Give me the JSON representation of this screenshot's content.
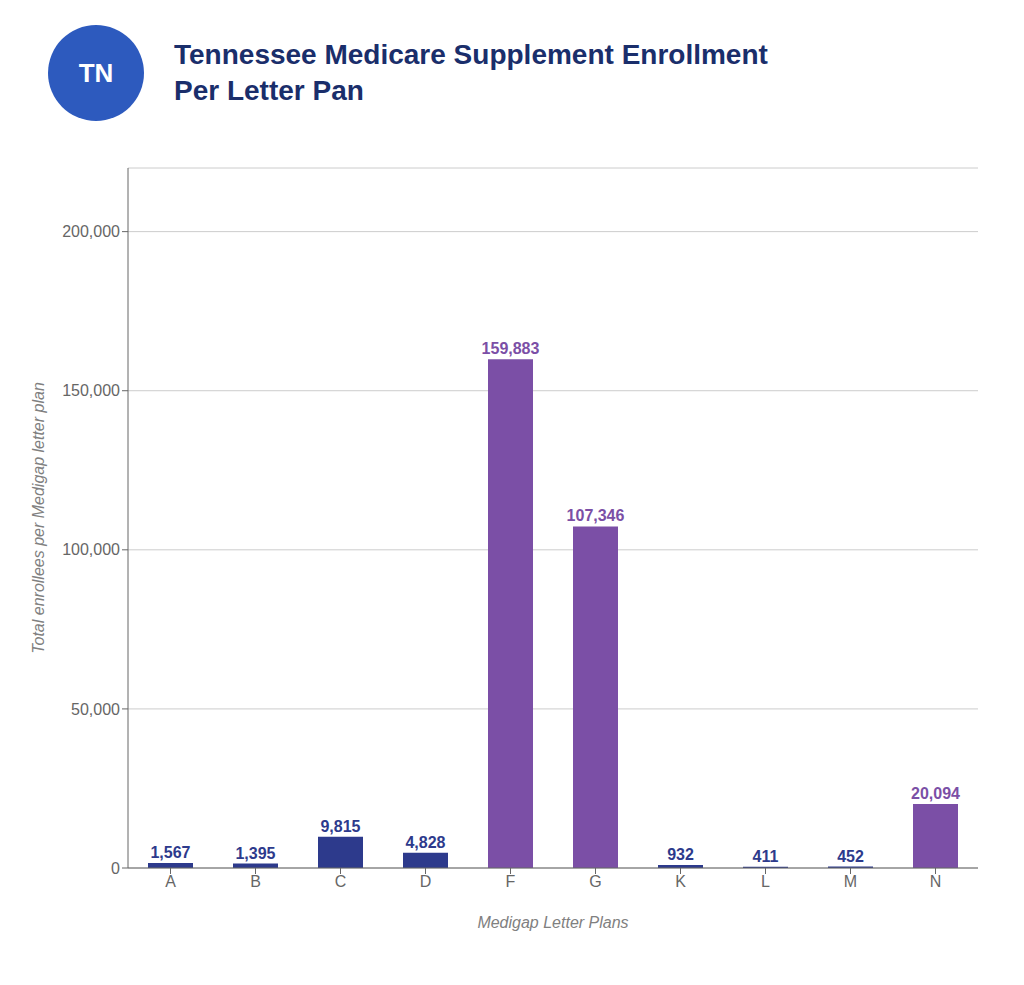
{
  "chart_data": {
    "type": "bar",
    "title": "Tennessee Medicare Supplement Enrollment",
    "subtitle": "Per Letter Pan",
    "annotations": [
      "TN"
    ],
    "x_label": "Medigap Letter Plans",
    "y_label": "Total enrollees per Medigap letter plan",
    "categories": [
      "A",
      "B",
      "C",
      "D",
      "F",
      "G",
      "K",
      "L",
      "M",
      "N"
    ],
    "values": [
      1567,
      1395,
      9815,
      4828,
      159883,
      107346,
      932,
      411,
      452,
      20094
    ],
    "value_labels": [
      "1,567",
      "1,395",
      "9,815",
      "4,828",
      "159,883",
      "107,346",
      "932",
      "411",
      "452",
      "20,094"
    ],
    "data_labels": true,
    "colors": [
      "#2d3a8c",
      "#2d3a8c",
      "#2d3a8c",
      "#2d3a8c",
      "#7b4fa6",
      "#7b4fa6",
      "#2d3a8c",
      "#2d3a8c",
      "#2d3a8c",
      "#7b4fa6"
    ],
    "ylim": [
      0,
      220000
    ],
    "yticks": [
      0,
      {
        "value": 50000,
        "label": "50,000"
      },
      {
        "value": 100000,
        "label": "100,000"
      },
      {
        "value": 150000,
        "label": "150,000"
      },
      {
        "value": 200000,
        "label": "200,000"
      }
    ],
    "grid": true
  }
}
